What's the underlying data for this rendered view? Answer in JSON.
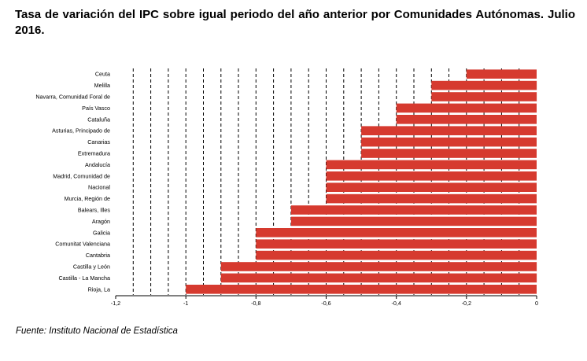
{
  "header": {
    "title": "Tasa de variación del IPC sobre igual periodo del año anterior por Comunidades Autónomas. Julio 2016."
  },
  "footer": {
    "source": "Fuente: Instituto Nacional de Estadística"
  },
  "colors": {
    "bar": "#d63a2f",
    "gridline": "#000000",
    "text": "#000000"
  },
  "chart_data": {
    "type": "bar",
    "orientation": "horizontal",
    "categories": [
      "Ceuta",
      "Melilla",
      "Navarra, Comunidad Foral de",
      "País Vasco",
      "Cataluña",
      "Asturias, Principado de",
      "Canarias",
      "Extremadura",
      "Andalucía",
      "Madrid, Comunidad de",
      "Nacional",
      "Murcia, Región de",
      "Balears, Illes",
      "Aragón",
      "Galicia",
      "Comunitat Valenciana",
      "Cantabria",
      "Castilla y León",
      "Castilla - La Mancha",
      "Rioja, La"
    ],
    "values": [
      -0.2,
      -0.3,
      -0.3,
      -0.4,
      -0.4,
      -0.5,
      -0.5,
      -0.5,
      -0.6,
      -0.6,
      -0.6,
      -0.6,
      -0.7,
      -0.7,
      -0.8,
      -0.8,
      -0.8,
      -0.9,
      -0.9,
      -1.0
    ],
    "xlim": [
      -1.2,
      0
    ],
    "xticks": [
      -1.2,
      -1,
      -0.8,
      -0.6,
      -0.4,
      -0.2,
      0
    ],
    "xtick_labels": [
      "-1,2",
      "-1",
      "-0,8",
      "-0,6",
      "-0,4",
      "-0,2",
      "0"
    ],
    "gridlines": "vertical dashed",
    "legend": "none"
  }
}
